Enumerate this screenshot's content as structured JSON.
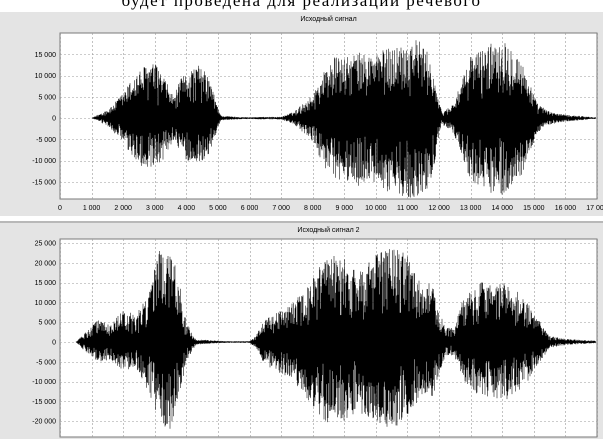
{
  "header": {
    "text": "будет проведена для реализации речевого"
  },
  "chart_data": [
    {
      "type": "line",
      "title": "Исходный сигнал",
      "xlabel": "",
      "ylabel": "",
      "xlim": [
        0,
        17000
      ],
      "ylim": [
        -19000,
        20000
      ],
      "grid": true,
      "line_color": "#000000",
      "x_ticks": [
        0,
        1000,
        2000,
        3000,
        4000,
        5000,
        6000,
        7000,
        8000,
        9000,
        10000,
        11000,
        12000,
        13000,
        14000,
        15000,
        16000,
        17000
      ],
      "x_tick_labels": [
        "0",
        "1 000",
        "2 000",
        "3 000",
        "4 000",
        "5 000",
        "6 000",
        "7 000",
        "8 000",
        "9 000",
        "10 000",
        "11 000",
        "12 000",
        "13 000",
        "14 000",
        "15 000",
        "16 000",
        "17 000"
      ],
      "y_ticks": [
        15000,
        10000,
        5000,
        0,
        -5000,
        -10000,
        -15000
      ],
      "y_tick_labels": [
        "15 000",
        "10 000",
        "5 000",
        "0",
        "-5 000",
        "-10 000",
        "-15 000"
      ],
      "envelope": {
        "x": [
          0,
          1000,
          1200,
          1600,
          2000,
          2300,
          2700,
          3000,
          3300,
          3600,
          3800,
          4100,
          4400,
          4700,
          4900,
          5100,
          5600,
          6000,
          6500,
          7000,
          7400,
          7700,
          8000,
          8300,
          8700,
          9000,
          9400,
          9800,
          10200,
          10600,
          11000,
          11300,
          11600,
          11800,
          12000,
          12100,
          12400,
          12700,
          13000,
          13300,
          13600,
          13900,
          14200,
          14500,
          14800,
          15100,
          15500,
          16000,
          16500,
          16900
        ],
        "y_max": [
          0,
          0,
          800,
          2500,
          6000,
          9500,
          12500,
          13000,
          9500,
          5000,
          9000,
          11500,
          12500,
          10000,
          5000,
          600,
          300,
          200,
          300,
          300,
          1500,
          3500,
          5500,
          10500,
          14500,
          14000,
          15500,
          15000,
          16000,
          17000,
          18000,
          19000,
          16000,
          12000,
          3500,
          1500,
          3000,
          8000,
          15000,
          16000,
          17500,
          19000,
          18000,
          15000,
          10000,
          3500,
          1500,
          800,
          500,
          200
        ],
        "y_min": [
          0,
          0,
          -600,
          -2500,
          -6000,
          -9500,
          -12000,
          -13000,
          -9500,
          -5000,
          -8500,
          -10500,
          -10500,
          -9000,
          -4500,
          -500,
          -300,
          -200,
          -300,
          -300,
          -1500,
          -3500,
          -5500,
          -10500,
          -15500,
          -14500,
          -16000,
          -15000,
          -17000,
          -18000,
          -18500,
          -19000,
          -17000,
          -13000,
          -4000,
          -1500,
          -3000,
          -8000,
          -15000,
          -16500,
          -17500,
          -18500,
          -17000,
          -15500,
          -10000,
          -3500,
          -1500,
          -800,
          -500,
          -200
        ]
      }
    },
    {
      "type": "line",
      "title": "Исходный сигнал 2",
      "xlabel": "",
      "ylabel": "",
      "xlim": [
        0,
        17000
      ],
      "ylim": [
        -24000,
        26000
      ],
      "grid": true,
      "line_color": "#000000",
      "x_ticks": [
        0,
        1000,
        2000,
        3000,
        4000,
        5000,
        6000,
        7000,
        8000,
        9000,
        10000,
        11000,
        12000,
        13000,
        14000,
        15000,
        16000,
        17000
      ],
      "x_tick_labels": [],
      "y_ticks": [
        25000,
        20000,
        15000,
        10000,
        5000,
        0,
        -5000,
        -10000,
        -15000,
        -20000
      ],
      "y_tick_labels": [
        "25 000",
        "20 000",
        "15 000",
        "10 000",
        "5 000",
        "0",
        "-5 000",
        "-10 000",
        "-15 000",
        "-20 000"
      ],
      "envelope": {
        "x": [
          0,
          500,
          800,
          1200,
          1600,
          2000,
          2400,
          2700,
          3000,
          3200,
          3500,
          3800,
          4000,
          4300,
          5000,
          5500,
          6000,
          6200,
          6500,
          7000,
          7400,
          7800,
          8200,
          8600,
          9000,
          9400,
          9800,
          10200,
          10600,
          11000,
          11300,
          11500,
          11800,
          12000,
          12200,
          12500,
          12800,
          13100,
          13400,
          13700,
          14000,
          14300,
          14600,
          14900,
          15200,
          15500,
          16000,
          16500,
          17000
        ],
        "y_max": [
          0,
          0,
          2500,
          5500,
          4500,
          8000,
          7000,
          11000,
          19000,
          25000,
          23000,
          16000,
          5000,
          700,
          300,
          200,
          200,
          1500,
          6000,
          8000,
          10000,
          14000,
          19000,
          22000,
          21000,
          18000,
          21000,
          23000,
          24000,
          22000,
          17000,
          13000,
          16000,
          8000,
          3500,
          4000,
          12000,
          13000,
          16000,
          14000,
          15000,
          14000,
          12000,
          9000,
          5000,
          1500,
          800,
          500,
          300
        ],
        "y_min": [
          0,
          0,
          -2500,
          -5000,
          -4500,
          -7500,
          -6500,
          -11000,
          -17000,
          -21000,
          -22000,
          -13000,
          -5000,
          -700,
          -300,
          -200,
          -200,
          -1500,
          -6000,
          -8000,
          -10000,
          -14000,
          -19000,
          -21000,
          -20000,
          -18000,
          -19000,
          -21000,
          -22500,
          -19000,
          -16000,
          -13000,
          -14000,
          -8000,
          -3500,
          -4000,
          -10000,
          -13000,
          -15000,
          -14000,
          -15000,
          -14000,
          -12000,
          -9000,
          -5000,
          -1500,
          -800,
          -500,
          -300
        ]
      }
    }
  ]
}
